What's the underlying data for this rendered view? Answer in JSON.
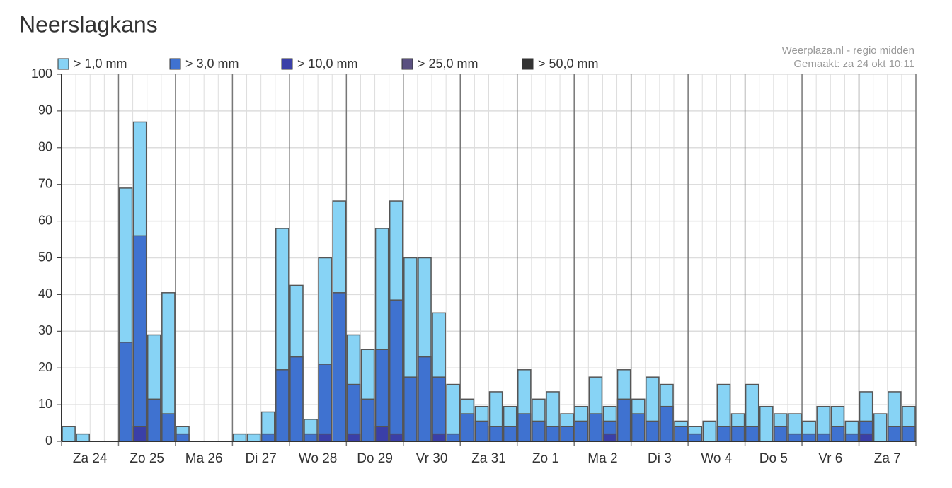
{
  "chart_data": {
    "type": "bar",
    "title": "Neerslagkans",
    "source": "Weerplaza.nl - regio midden",
    "made": "Gemaakt: za 24 okt 10:11",
    "day_labels": [
      "Za 24",
      "Zo 25",
      "Ma 26",
      "Di 27",
      "Wo 28",
      "Do 29",
      "Vr 30",
      "Za 31",
      "Zo 1",
      "Ma 2",
      "Di 3",
      "Wo 4",
      "Do 5",
      "Vr 6",
      "Za 7"
    ],
    "ylim": [
      0,
      100
    ],
    "yticks": [
      0,
      10,
      20,
      30,
      40,
      50,
      60,
      70,
      80,
      90,
      100
    ],
    "grid": true,
    "series": [
      {
        "name": "> 1,0 mm",
        "color": "#87d3f5",
        "values": [
          4,
          2,
          0,
          0,
          69,
          87,
          29,
          40.5,
          4,
          0,
          0,
          0,
          2,
          2,
          8,
          58,
          42.5,
          6,
          50,
          65.5,
          29,
          25,
          58,
          65.5,
          50,
          50,
          35,
          15.5,
          11.5,
          9.5,
          13.5,
          9.5,
          19.5,
          11.5,
          13.5,
          7.5,
          9.5,
          17.5,
          9.5,
          19.5,
          11.5,
          17.5,
          15.5,
          5.5,
          4,
          5.5,
          15.5,
          7.5,
          15.5,
          9.5,
          7.5,
          7.5,
          5.5,
          9.5,
          9.5,
          5.5,
          13.5,
          7.5,
          13.5,
          9.5
        ]
      },
      {
        "name": "> 3,0 mm",
        "color": "#3f72d0",
        "values": [
          0,
          0,
          0,
          0,
          27,
          56,
          11.5,
          7.5,
          2,
          0,
          0,
          0,
          0,
          0,
          2,
          19.5,
          23,
          2,
          21,
          40.5,
          15.5,
          11.5,
          25,
          38.5,
          17.5,
          23,
          17.5,
          2,
          7.5,
          5.5,
          4,
          4,
          7.5,
          5.5,
          4,
          4,
          5.5,
          7.5,
          5.5,
          11.5,
          7.5,
          5.5,
          9.5,
          4,
          2,
          0,
          4,
          4,
          4,
          0,
          4,
          2,
          2,
          2,
          4,
          2,
          5.5,
          0,
          4,
          4
        ]
      },
      {
        "name": "> 10,0 mm",
        "color": "#3a3fa8",
        "values": [
          0,
          0,
          0,
          0,
          0,
          4,
          0,
          0,
          0,
          0,
          0,
          0,
          0,
          0,
          0,
          0,
          0,
          0,
          2,
          0,
          2,
          0,
          4,
          2,
          0,
          0,
          2,
          0,
          0,
          0,
          0,
          0,
          0,
          0,
          0,
          0,
          0,
          0,
          2,
          0,
          0,
          0,
          0,
          0,
          0,
          0,
          0,
          0,
          0,
          0,
          0,
          0,
          0,
          0,
          0,
          0,
          2,
          0,
          0,
          0
        ]
      },
      {
        "name": "> 25,0 mm",
        "color": "#5a5080",
        "values": [
          0,
          0,
          0,
          0,
          0,
          0,
          0,
          0,
          0,
          0,
          0,
          0,
          0,
          0,
          0,
          0,
          0,
          0,
          0,
          0,
          0,
          0,
          0,
          0,
          0,
          0,
          0,
          0,
          0,
          0,
          0,
          0,
          0,
          0,
          0,
          0,
          0,
          0,
          0,
          0,
          0,
          0,
          0,
          0,
          0,
          0,
          0,
          0,
          0,
          0,
          0,
          0,
          0,
          0,
          0,
          0,
          0,
          0,
          0,
          0
        ]
      },
      {
        "name": "> 50,0 mm",
        "color": "#333333",
        "values": [
          0,
          0,
          0,
          0,
          0,
          0,
          0,
          0,
          0,
          0,
          0,
          0,
          0,
          0,
          0,
          0,
          0,
          0,
          0,
          0,
          0,
          0,
          0,
          0,
          0,
          0,
          0,
          0,
          0,
          0,
          0,
          0,
          0,
          0,
          0,
          0,
          0,
          0,
          0,
          0,
          0,
          0,
          0,
          0,
          0,
          0,
          0,
          0,
          0,
          0,
          0,
          0,
          0,
          0,
          0,
          0,
          0,
          0,
          0,
          0
        ]
      }
    ]
  }
}
